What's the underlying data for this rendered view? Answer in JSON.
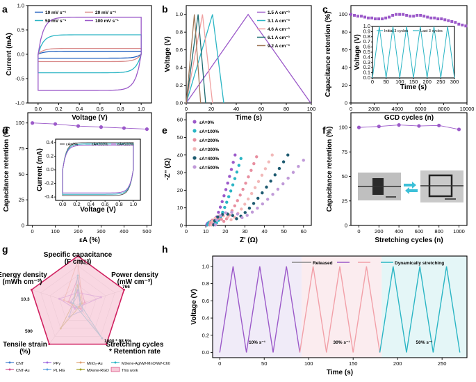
{
  "panel_labels": [
    "a",
    "b",
    "c",
    "d",
    "e",
    "f",
    "g",
    "h"
  ],
  "chart_data": [
    {
      "panel": "a",
      "type": "line",
      "xlabel": "Voltage (V)",
      "ylabel": "Current (mA)",
      "xlim": [
        -0.1,
        1.1
      ],
      "ylim": [
        -1.0,
        1.0
      ],
      "xticks": [
        "0.0",
        "0.2",
        "0.4",
        "0.6",
        "0.8",
        "1.0"
      ],
      "yticks": [
        "-1.0",
        "-0.5",
        "0.0",
        "0.5",
        "1.0"
      ],
      "legend_position": "top-left",
      "series": [
        {
          "name": "10 mV s⁻¹",
          "color": "#1f5fbf",
          "current_upper": 0.06,
          "current_lower": -0.08
        },
        {
          "name": "20 mV s⁻¹",
          "color": "#d98a8a",
          "current_upper": 0.12,
          "current_lower": -0.15
        },
        {
          "name": "50 mV s⁻¹",
          "color": "#2ab5c4",
          "current_upper": 0.4,
          "current_lower": -0.38
        },
        {
          "name": "100 mV s⁻¹",
          "color": "#9b59c9",
          "current_upper": 0.76,
          "current_lower": -0.74
        }
      ]
    },
    {
      "panel": "b",
      "type": "line",
      "xlabel": "Time (s)",
      "ylabel": "Voltage (V)",
      "xlim": [
        0,
        100
      ],
      "ylim": [
        0,
        1.1
      ],
      "xticks": [
        "0",
        "20",
        "40",
        "60",
        "80",
        "100"
      ],
      "yticks": [
        "0.0",
        "0.2",
        "0.4",
        "0.6",
        "0.8",
        "1.0"
      ],
      "legend_position": "top-right",
      "series": [
        {
          "name": "1.5 A cm⁻³",
          "color": "#9b59c9",
          "x": [
            0,
            49.5,
            99.5
          ],
          "y": [
            0,
            1.0,
            0
          ]
        },
        {
          "name": "3.1 A cm⁻³",
          "color": "#2ab5c4",
          "x": [
            0,
            21,
            30
          ],
          "y": [
            0,
            1.0,
            0
          ]
        },
        {
          "name": "4.6 A cm⁻³",
          "color": "#f0a0a0",
          "x": [
            0,
            13,
            21
          ],
          "y": [
            0,
            1.0,
            0
          ]
        },
        {
          "name": "6.1 A cm⁻³",
          "color": "#1d6b70",
          "x": [
            0,
            9.5,
            15.5
          ],
          "y": [
            0,
            1.0,
            0
          ]
        },
        {
          "name": "9.2 A cm⁻³",
          "color": "#a0785a",
          "x": [
            0,
            6.5,
            11.5
          ],
          "y": [
            0,
            1.0,
            0
          ]
        }
      ]
    },
    {
      "panel": "c",
      "type": "scatter",
      "xlabel": "GCD cycles (n)",
      "ylabel": "Capacitance retention (%)",
      "xlim": [
        0,
        10000
      ],
      "ylim": [
        0,
        110
      ],
      "xticks": [
        "0",
        "2000",
        "4000",
        "6000",
        "8000",
        "10000"
      ],
      "yticks": [
        "0",
        "20",
        "40",
        "60",
        "80",
        "100"
      ],
      "series": [
        {
          "name": "",
          "color": "#9b59c9",
          "x": [
            0,
            300,
            600,
            900,
            1200,
            1500,
            1800,
            2100,
            2400,
            2700,
            3000,
            3300,
            3600,
            3900,
            4200,
            4500,
            4800,
            5100,
            5400,
            5700,
            6000,
            6300,
            6600,
            6900,
            7200,
            7500,
            7800,
            8100,
            8400,
            8700,
            9000,
            9300,
            9600,
            9900
          ],
          "y": [
            100,
            99,
            98,
            98,
            97,
            96,
            96,
            95,
            95,
            95,
            96,
            97,
            99,
            100,
            100,
            100,
            99,
            98,
            98,
            99,
            99,
            98,
            97,
            96,
            96,
            95,
            95,
            94,
            93,
            92,
            91,
            89,
            88,
            87
          ]
        }
      ],
      "inset": {
        "type": "line",
        "xlabel": "Time (s)",
        "ylabel": "Voltage (V)",
        "xlim": [
          0,
          300
        ],
        "ylim": [
          0,
          1.0
        ],
        "xticks": [
          "0",
          "50",
          "100",
          "150",
          "200",
          "250",
          "300"
        ],
        "yticks": [
          "0.0",
          "0.1",
          "0.2",
          "0.3",
          "0.4",
          "0.5",
          "0.6",
          "0.7",
          "0.8",
          "0.9",
          "1.0"
        ],
        "series": [
          {
            "name": "Initial 3 cycles",
            "color": "#2ab5c4",
            "x": [
              0,
              25,
              50,
              75,
              100,
              125,
              150
            ],
            "y": [
              0,
              1,
              0,
              1,
              0,
              1,
              0
            ]
          },
          {
            "name": "Last 3 cycles",
            "color": "#2ab5c4",
            "x": [
              150,
              175,
              200,
              225,
              250,
              275,
              300
            ],
            "y": [
              0,
              1,
              0,
              1,
              0,
              1,
              0
            ]
          }
        ]
      }
    },
    {
      "panel": "d",
      "type": "line",
      "xlabel": "εA (%)",
      "ylabel": "Capacitance retention (%)",
      "xlim": [
        -20,
        520
      ],
      "ylim": [
        0,
        110
      ],
      "xticks": [
        "0",
        "100",
        "200",
        "300",
        "400",
        "500"
      ],
      "yticks": [
        "0",
        "25",
        "50",
        "75",
        "100"
      ],
      "series": [
        {
          "name": "",
          "color": "#9b59c9",
          "x": [
            0,
            100,
            200,
            300,
            400,
            500
          ],
          "y": [
            100,
            99,
            97,
            96,
            95,
            94
          ]
        }
      ],
      "inset": {
        "type": "line",
        "xlabel": "Voltage (V)",
        "ylabel": "Current (mA)",
        "xlim": [
          -0.1,
          1.1
        ],
        "ylim": [
          -0.45,
          0.45
        ],
        "xticks": [
          "0.0",
          "0.2",
          "0.4",
          "0.6",
          "0.8",
          "1.0"
        ],
        "yticks": [
          "-0.4",
          "-0.2",
          "0.0",
          "0.2",
          "0.4"
        ],
        "series": [
          {
            "name": "εA=0%",
            "color": "#555555",
            "current_upper": 0.4,
            "current_lower": -0.38
          },
          {
            "name": "εA=200%",
            "color": "#2ab5c4",
            "current_upper": 0.38,
            "current_lower": -0.36
          },
          {
            "name": "εA=500%",
            "color": "#9b59c9",
            "current_upper": 0.36,
            "current_lower": -0.34
          }
        ]
      }
    },
    {
      "panel": "e",
      "type": "scatter",
      "xlabel": "Z' (Ω)",
      "ylabel": "-Z'' (Ω)",
      "xlim": [
        0,
        64
      ],
      "ylim": [
        0,
        64
      ],
      "xticks": [
        "0",
        "10",
        "20",
        "30",
        "40",
        "50",
        "60"
      ],
      "yticks": [
        "0",
        "10",
        "20",
        "30",
        "40",
        "50",
        "60"
      ],
      "legend_position": "top-left",
      "series": [
        {
          "name": "εA=0%",
          "color": "#9b59c9",
          "start": 10.5,
          "knee": 14,
          "end": [
            25,
            40
          ]
        },
        {
          "name": "εA=100%",
          "color": "#2ab5c4",
          "start": 11,
          "knee": 16,
          "end": [
            28,
            38
          ]
        },
        {
          "name": "εA=200%",
          "color": "#e88fa0",
          "start": 12,
          "knee": 20,
          "end": [
            36,
            39
          ]
        },
        {
          "name": "εA=300%",
          "color": "#f2b8b8",
          "start": 13,
          "knee": 24,
          "end": [
            44,
            40
          ]
        },
        {
          "name": "εA=400%",
          "color": "#1d5a70",
          "start": 14,
          "knee": 27,
          "end": [
            52,
            40
          ]
        },
        {
          "name": "εA=500%",
          "color": "#c09ad8",
          "start": 15,
          "knee": 30,
          "end": [
            60,
            37
          ]
        }
      ]
    },
    {
      "panel": "f",
      "type": "line",
      "xlabel": "Stretching cycles (n)",
      "ylabel": "Capacitance retention (%)",
      "xlim": [
        -80,
        1080
      ],
      "ylim": [
        0,
        115
      ],
      "xticks": [
        "0",
        "200",
        "400",
        "600",
        "800",
        "1000"
      ],
      "yticks": [
        "0",
        "25",
        "50",
        "75",
        "100"
      ],
      "series": [
        {
          "name": "",
          "color": "#9b59c9",
          "x": [
            0,
            200,
            400,
            600,
            800,
            1000
          ],
          "y": [
            100,
            101,
            102.5,
            101.5,
            102,
            98
          ]
        }
      ]
    },
    {
      "panel": "g",
      "type": "radar",
      "axes": [
        {
          "label": "Specific capacitance",
          "unit": "(F cm⁻³)",
          "max_label": "74.0"
        },
        {
          "label": "Power density",
          "unit": "(mW cm⁻³)",
          "max_label": "766"
        },
        {
          "label": "Stretching cycles",
          "unit": "* Retention rate",
          "max_label": "1000 * 98.5%"
        },
        {
          "label": "Tensile strain",
          "unit": "(%)",
          "max_label": "500"
        },
        {
          "label": "Energy density",
          "unit": "(mWh cm⁻³)",
          "max_label": "10.3"
        }
      ],
      "series": [
        {
          "name": "CNT",
          "color": "#3f7fcf",
          "values": [
            0.3,
            0.05,
            0.05,
            0.1,
            0.15
          ]
        },
        {
          "name": "CNT-Au",
          "color": "#d0508f",
          "values": [
            0.55,
            0.15,
            0.1,
            0.08,
            0.2
          ]
        },
        {
          "name": "PPy",
          "color": "#a06ae0",
          "values": [
            0.25,
            0.5,
            0.05,
            0.1,
            0.4
          ]
        },
        {
          "name": "PL HG",
          "color": "#5aa0e0",
          "values": [
            0.2,
            0.1,
            0.15,
            0.3,
            0.1
          ]
        },
        {
          "name": "MnO₂-Au",
          "color": "#e0a070",
          "values": [
            0.9,
            0.1,
            0.05,
            0.05,
            0.3
          ]
        },
        {
          "name": "MXene-RGO",
          "color": "#a0a020",
          "values": [
            0.4,
            0.08,
            0.05,
            0.6,
            0.1
          ]
        },
        {
          "name": "MXene-AgNW-MnONW-C60",
          "color": "#2ab5c4",
          "values": [
            0.6,
            0.05,
            0.85,
            0.05,
            0.1
          ]
        },
        {
          "name": "This work",
          "color": "#d02060",
          "fill": "#f7c9d8",
          "values": [
            1.0,
            1.0,
            1.0,
            1.0,
            1.0
          ]
        }
      ]
    },
    {
      "panel": "h",
      "type": "line",
      "xlabel": "Time (s)",
      "ylabel": "Voltage (V)",
      "xlim": [
        -8,
        278
      ],
      "ylim": [
        -0.06,
        1.12
      ],
      "xticks": [
        "0",
        "50",
        "100",
        "150",
        "200",
        "250"
      ],
      "yticks": [
        "0.0",
        "0.2",
        "0.4",
        "0.6",
        "0.8",
        "1.0"
      ],
      "legend_position": "top",
      "regions": [
        {
          "label": "10% s⁻¹",
          "x0": -8,
          "x1": 92,
          "color": "#f0ebf8"
        },
        {
          "label": "30% s⁻¹",
          "x0": 92,
          "x1": 182,
          "color": "#fbecef"
        },
        {
          "label": "50% s⁻¹",
          "x0": 182,
          "x1": 278,
          "color": "#e4f6f7"
        }
      ],
      "legend": [
        {
          "name": "Released",
          "color": "#888888"
        },
        {
          "name": "",
          "color": "#9b59c9"
        },
        {
          "name": "",
          "color": "#f2a0a8"
        },
        {
          "name": "Dynamically stretching",
          "color": "#2ab5c4"
        }
      ],
      "series": [
        {
          "name": "10% s⁻¹",
          "color": "#9b59c9",
          "x": [
            0,
            15,
            30,
            45,
            60,
            75,
            90
          ],
          "y": [
            0,
            1,
            0,
            1,
            0,
            1,
            0
          ]
        },
        {
          "name": "30% s⁻¹",
          "color": "#f2a0a8",
          "x": [
            90,
            105,
            120,
            135,
            150,
            165,
            180
          ],
          "y": [
            0,
            1,
            0,
            1,
            0,
            1,
            0
          ]
        },
        {
          "name": "50% s⁻¹",
          "color": "#2ab5c4",
          "x": [
            180,
            195,
            210,
            225,
            240,
            255,
            270
          ],
          "y": [
            0,
            1,
            0,
            1,
            0,
            1,
            0
          ]
        }
      ]
    }
  ]
}
